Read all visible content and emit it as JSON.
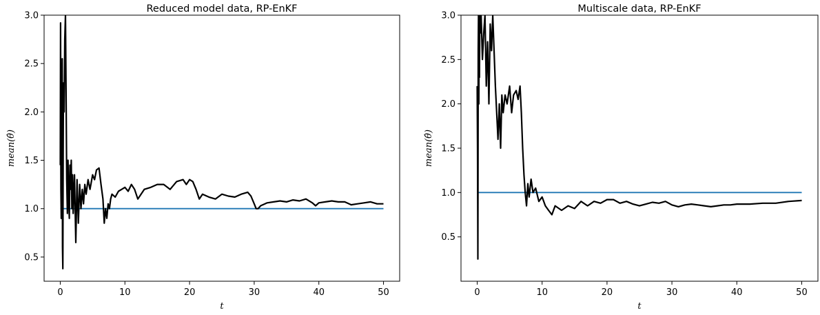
{
  "chart_data": [
    {
      "type": "line",
      "title": "Reduced model data, RP-EnKF",
      "xlabel": "t",
      "ylabel": "mean(θ̂)",
      "xlim": [
        -2.5,
        52.5
      ],
      "ylim": [
        0.25,
        3.0
      ],
      "xticks": [
        0,
        10,
        20,
        30,
        40,
        50
      ],
      "yticks": [
        0.5,
        1.0,
        1.5,
        2.0,
        2.5,
        3.0
      ],
      "ytick_labels": [
        "0.5",
        "1.0",
        "1.5",
        "2.0",
        "2.5",
        "3.0"
      ],
      "grid": false,
      "series": [
        {
          "color": "#000000",
          "x": [
            0.0,
            0.05,
            0.1,
            0.15,
            0.2,
            0.25,
            0.3,
            0.35,
            0.4,
            0.45,
            0.5,
            0.6,
            0.7,
            0.8,
            0.9,
            1.0,
            1.1,
            1.2,
            1.3,
            1.4,
            1.5,
            1.6,
            1.7,
            1.8,
            1.9,
            2.0,
            2.2,
            2.4,
            2.6,
            2.8,
            3.0,
            3.2,
            3.4,
            3.6,
            3.8,
            4.0,
            4.3,
            4.6,
            5.0,
            5.3,
            5.6,
            6.0,
            6.3,
            6.6,
            6.8,
            7.0,
            7.2,
            7.4,
            7.6,
            7.8,
            8.0,
            8.5,
            9.0,
            9.5,
            10.0,
            10.5,
            11.0,
            11.5,
            12.0,
            13.0,
            14.0,
            15.0,
            16.0,
            17.0,
            18.0,
            19.0,
            19.5,
            20.0,
            20.5,
            21.0,
            21.5,
            22.0,
            23.0,
            24.0,
            25.0,
            26.0,
            27.0,
            28.0,
            29.0,
            29.5,
            30.0,
            30.3,
            30.6,
            31.0,
            32.0,
            33.0,
            34.0,
            35.0,
            36.0,
            37.0,
            38.0,
            39.0,
            39.5,
            40.0,
            41.0,
            42.0,
            43.0,
            44.0,
            45.0,
            46.0,
            47.0,
            48.0,
            49.0,
            50.0
          ],
          "y": [
            1.45,
            2.92,
            1.2,
            0.9,
            2.5,
            1.3,
            2.55,
            0.6,
            0.38,
            1.6,
            2.3,
            2.0,
            2.75,
            3.0,
            2.2,
            1.3,
            0.95,
            1.5,
            1.1,
            0.9,
            1.45,
            1.2,
            1.5,
            1.0,
            1.35,
            0.95,
            1.35,
            0.65,
            1.3,
            0.85,
            1.25,
            1.0,
            1.2,
            1.05,
            1.25,
            1.15,
            1.3,
            1.2,
            1.35,
            1.3,
            1.4,
            1.42,
            1.25,
            1.1,
            0.85,
            1.0,
            0.9,
            1.05,
            1.0,
            1.1,
            1.15,
            1.12,
            1.18,
            1.2,
            1.22,
            1.18,
            1.25,
            1.2,
            1.1,
            1.2,
            1.22,
            1.25,
            1.25,
            1.2,
            1.28,
            1.3,
            1.25,
            1.3,
            1.28,
            1.2,
            1.1,
            1.15,
            1.12,
            1.1,
            1.15,
            1.13,
            1.12,
            1.15,
            1.17,
            1.13,
            1.05,
            1.0,
            1.0,
            1.03,
            1.06,
            1.07,
            1.08,
            1.07,
            1.09,
            1.08,
            1.1,
            1.06,
            1.03,
            1.06,
            1.07,
            1.08,
            1.07,
            1.07,
            1.04,
            1.05,
            1.06,
            1.07,
            1.05,
            1.05
          ]
        },
        {
          "color": "#1f77b4",
          "x": [
            0,
            50
          ],
          "y": [
            1.0,
            1.0
          ]
        }
      ]
    },
    {
      "type": "line",
      "title": "Multiscale data, RP-EnKF",
      "xlabel": "t",
      "ylabel": "mean(θ̂)",
      "xlim": [
        -2.5,
        52.5
      ],
      "ylim": [
        0.0,
        3.0
      ],
      "xticks": [
        0,
        10,
        20,
        30,
        40,
        50
      ],
      "yticks": [
        0.5,
        1.0,
        1.5,
        2.0,
        2.5,
        3.0
      ],
      "ytick_labels": [
        "0.5",
        "1.0",
        "1.5",
        "2.0",
        "2.5",
        "3.0"
      ],
      "grid": false,
      "series": [
        {
          "color": "#000000",
          "x": [
            0.0,
            0.05,
            0.1,
            0.15,
            0.2,
            0.25,
            0.3,
            0.35,
            0.4,
            0.5,
            0.6,
            0.8,
            1.0,
            1.2,
            1.4,
            1.6,
            1.8,
            2.0,
            2.2,
            2.4,
            2.6,
            2.8,
            3.0,
            3.2,
            3.4,
            3.6,
            3.8,
            4.0,
            4.3,
            4.6,
            5.0,
            5.3,
            5.6,
            6.0,
            6.3,
            6.6,
            6.8,
            7.0,
            7.2,
            7.4,
            7.6,
            7.8,
            8.0,
            8.3,
            8.6,
            9.0,
            9.5,
            10.0,
            10.5,
            11.0,
            11.5,
            12.0,
            13.0,
            14.0,
            15.0,
            16.0,
            17.0,
            18.0,
            19.0,
            20.0,
            21.0,
            22.0,
            23.0,
            24.0,
            25.0,
            26.0,
            27.0,
            28.0,
            29.0,
            30.0,
            31.0,
            32.0,
            33.0,
            34.0,
            35.0,
            36.0,
            37.0,
            38.0,
            39.0,
            40.0,
            42.0,
            44.0,
            46.0,
            48.0,
            50.0
          ],
          "y": [
            2.2,
            1.5,
            0.25,
            2.6,
            3.0,
            2.0,
            2.9,
            2.3,
            3.0,
            2.8,
            3.0,
            2.5,
            2.8,
            3.0,
            2.2,
            2.7,
            2.0,
            2.9,
            2.6,
            3.0,
            2.6,
            2.2,
            1.9,
            1.6,
            2.0,
            1.5,
            2.1,
            1.9,
            2.1,
            2.0,
            2.2,
            1.9,
            2.1,
            2.15,
            2.05,
            2.2,
            1.9,
            1.5,
            1.2,
            1.0,
            0.85,
            1.1,
            0.95,
            1.15,
            1.0,
            1.05,
            0.9,
            0.95,
            0.85,
            0.8,
            0.75,
            0.85,
            0.8,
            0.85,
            0.82,
            0.9,
            0.85,
            0.9,
            0.88,
            0.92,
            0.92,
            0.88,
            0.9,
            0.87,
            0.85,
            0.87,
            0.89,
            0.88,
            0.9,
            0.86,
            0.84,
            0.86,
            0.87,
            0.86,
            0.85,
            0.84,
            0.85,
            0.86,
            0.86,
            0.87,
            0.87,
            0.88,
            0.88,
            0.9,
            0.91
          ]
        },
        {
          "color": "#1f77b4",
          "x": [
            0,
            50
          ],
          "y": [
            1.0,
            1.0
          ]
        }
      ]
    }
  ]
}
